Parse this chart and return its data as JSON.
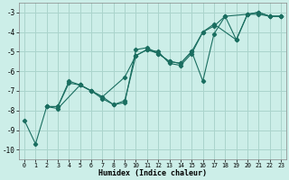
{
  "xlabel": "Humidex (Indice chaleur)",
  "xlim": [
    -0.5,
    23.5
  ],
  "ylim": [
    -10.5,
    -2.5
  ],
  "yticks": [
    -10,
    -9,
    -8,
    -7,
    -6,
    -5,
    -4,
    -3
  ],
  "xticks": [
    0,
    1,
    2,
    3,
    4,
    5,
    6,
    7,
    8,
    9,
    10,
    11,
    12,
    13,
    14,
    15,
    16,
    17,
    18,
    19,
    20,
    21,
    22,
    23
  ],
  "bg_color": "#cceee8",
  "grid_color": "#aad4cc",
  "line_color": "#1a6e60",
  "lines": [
    {
      "x": [
        0,
        1,
        2,
        3,
        4,
        5,
        6,
        7,
        8,
        9,
        10,
        11,
        12,
        13,
        14,
        15,
        16,
        17,
        18,
        19,
        20,
        21,
        22,
        23
      ],
      "y": [
        -8.5,
        -9.7,
        -7.8,
        -7.8,
        -6.6,
        -6.7,
        -7.0,
        -7.3,
        -7.7,
        -7.6,
        -4.9,
        -4.8,
        -5.1,
        -5.5,
        -5.6,
        -5.0,
        -6.5,
        -4.1,
        -3.2,
        -4.4,
        -3.1,
        -3.1,
        -3.2,
        -3.2
      ]
    },
    {
      "x": [
        2,
        3,
        5,
        6,
        7,
        9,
        10,
        11,
        12,
        13,
        14,
        15,
        16,
        17,
        19,
        20,
        21,
        22,
        23
      ],
      "y": [
        -7.8,
        -7.9,
        -6.7,
        -7.0,
        -7.3,
        -6.3,
        -5.2,
        -4.9,
        -5.1,
        -5.5,
        -5.6,
        -5.0,
        -4.0,
        -3.6,
        -4.4,
        -3.1,
        -3.0,
        -3.2,
        -3.2
      ]
    },
    {
      "x": [
        2,
        3,
        4,
        5,
        6,
        7,
        8,
        9,
        10,
        11,
        12,
        13,
        14,
        15,
        16,
        17,
        18,
        20,
        21,
        22,
        23
      ],
      "y": [
        -7.8,
        -7.8,
        -6.5,
        -6.7,
        -7.0,
        -7.4,
        -7.7,
        -7.5,
        -5.2,
        -4.9,
        -5.0,
        -5.6,
        -5.7,
        -5.1,
        -4.0,
        -3.7,
        -3.2,
        -3.1,
        -3.0,
        -3.2,
        -3.2
      ]
    }
  ]
}
